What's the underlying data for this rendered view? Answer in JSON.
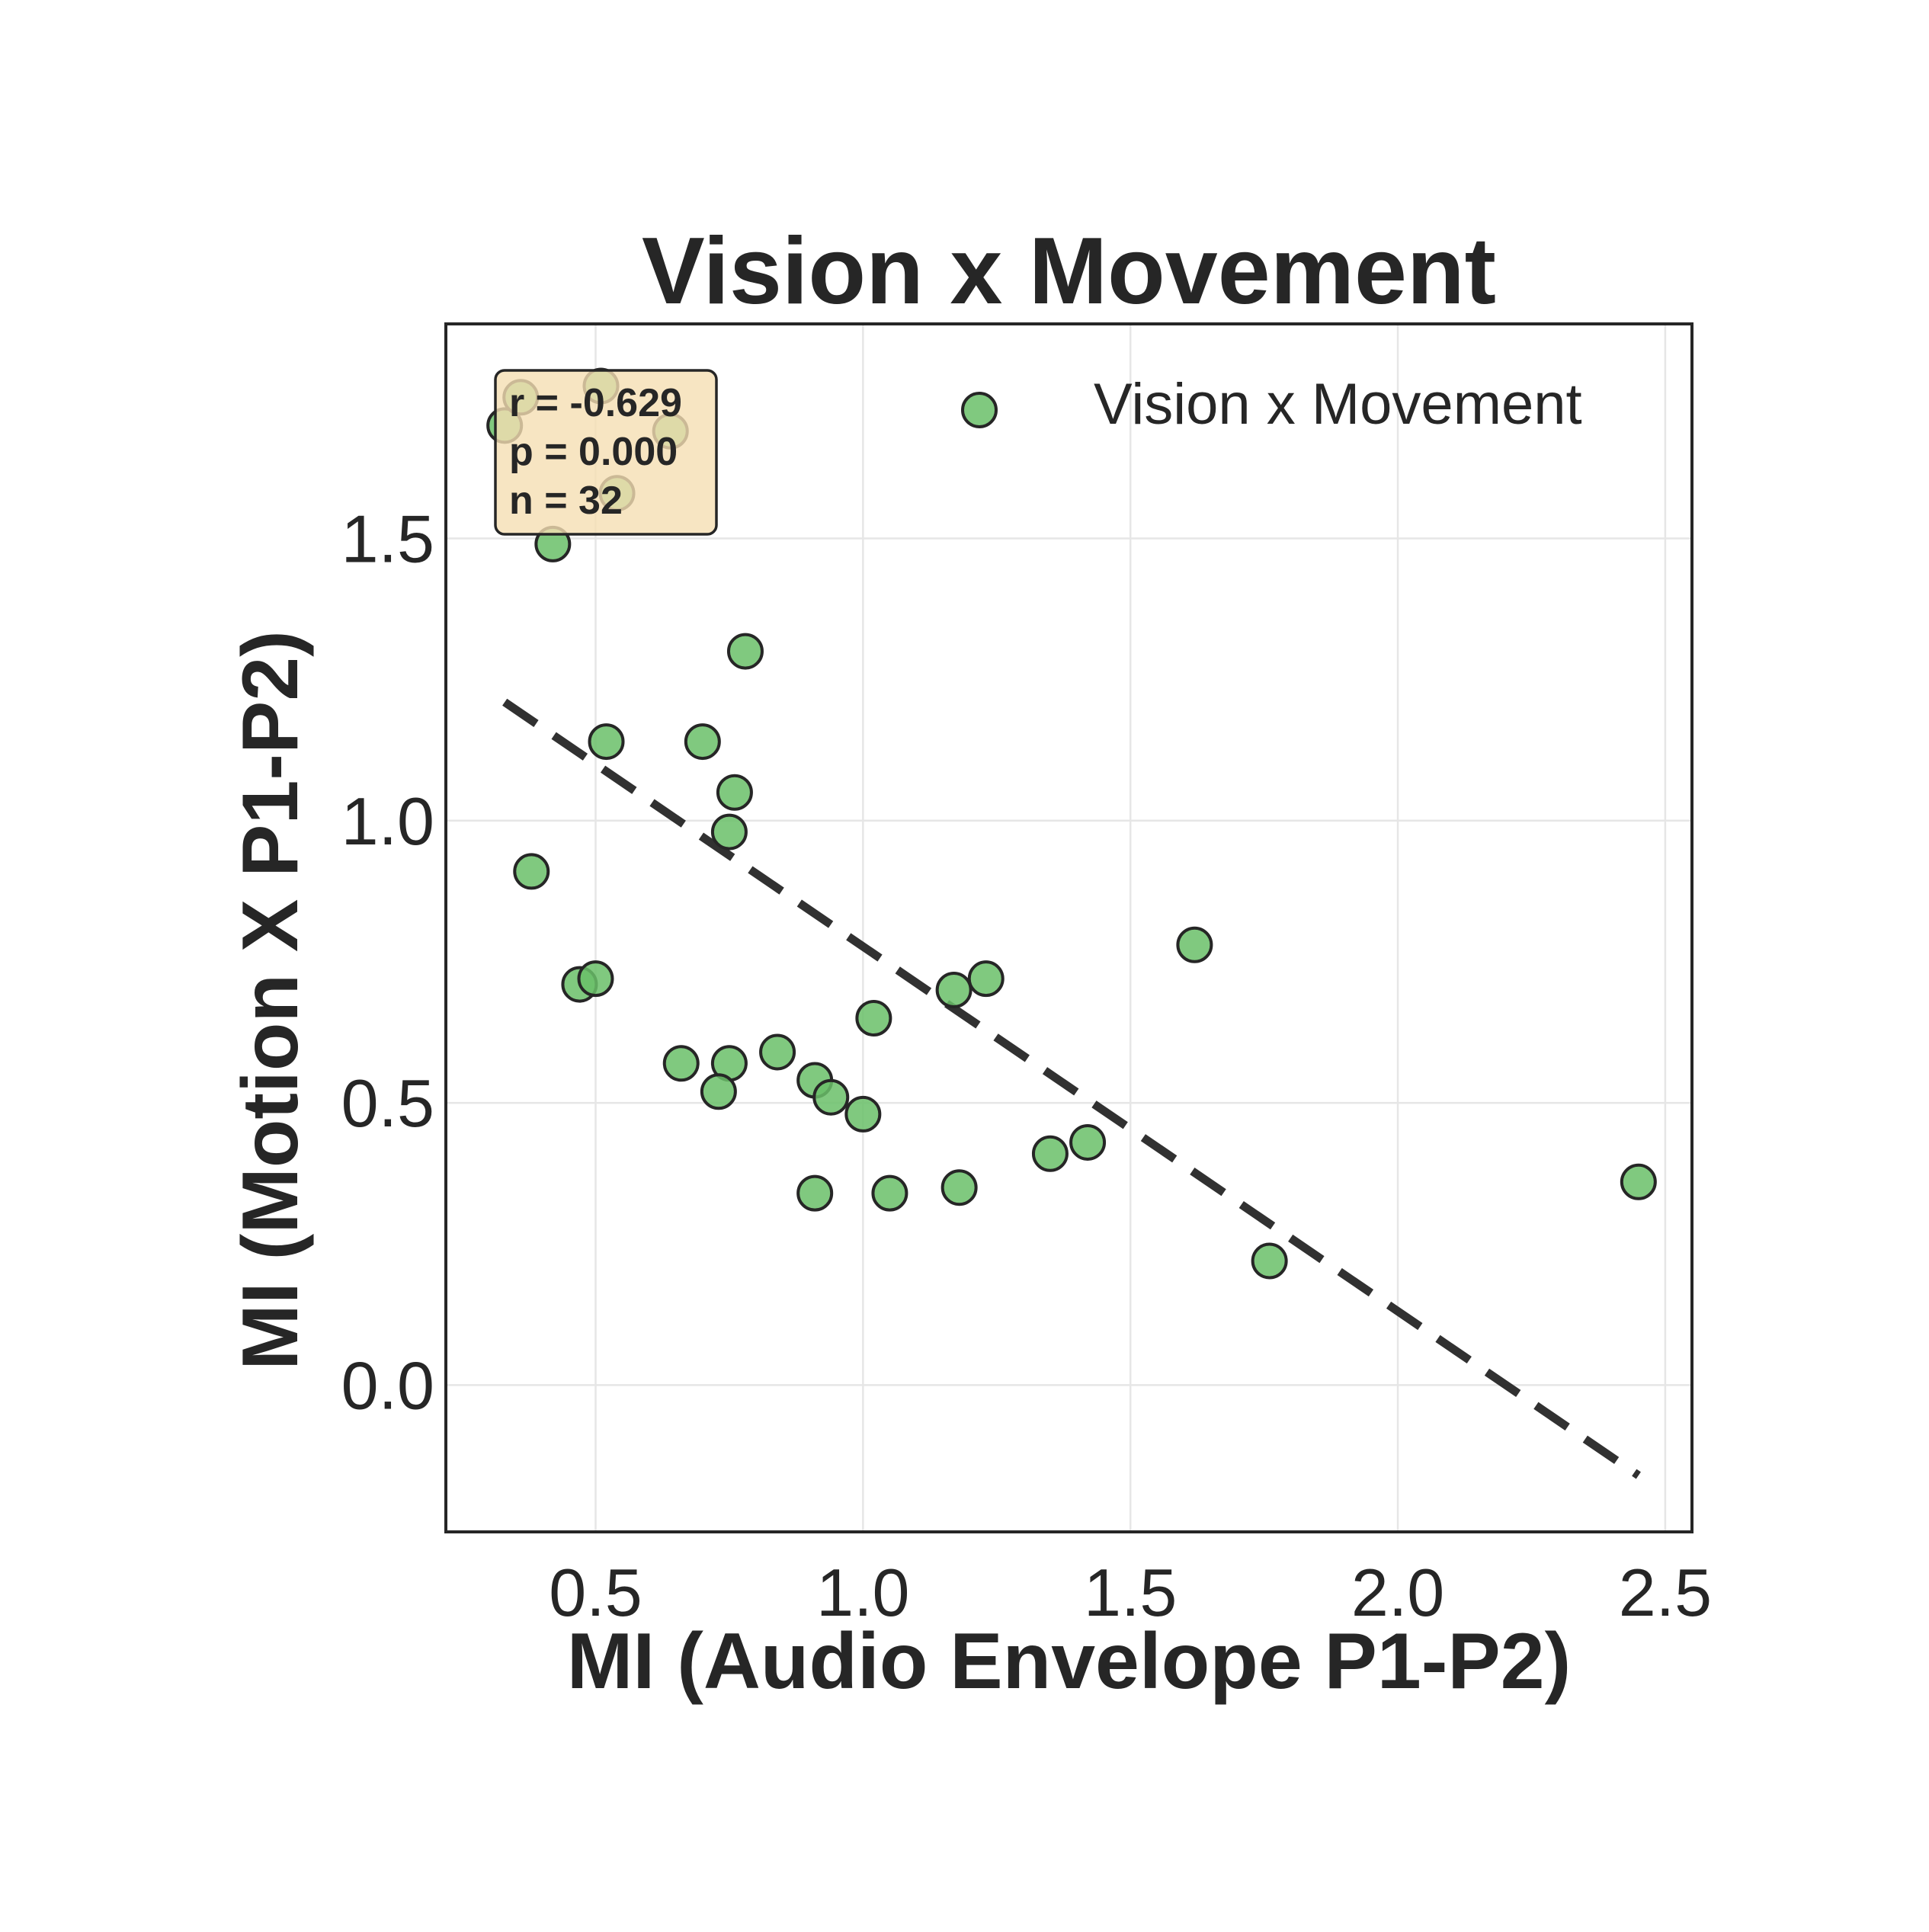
{
  "chart_data": {
    "type": "scatter",
    "title": "Vision x Movement",
    "xlabel": "MI (Audio Envelope P1-P2)",
    "ylabel": "MI (Motion X P1-P2)",
    "xlim": [
      0.22,
      2.55
    ],
    "ylim": [
      -0.26,
      1.88
    ],
    "xticks": [
      0.5,
      1.0,
      1.5,
      2.0,
      2.5
    ],
    "xtick_labels": [
      "0.5",
      "1.0",
      "1.5",
      "2.0",
      "2.5"
    ],
    "yticks": [
      0.0,
      0.5,
      1.0,
      1.5
    ],
    "ytick_labels": [
      "0.0",
      "0.5",
      "1.0",
      "1.5"
    ],
    "grid": true,
    "legend": {
      "position": "top-right",
      "entries": [
        "Vision x Movement"
      ]
    },
    "series": [
      {
        "name": "Vision x Movement",
        "color": "#6abf69",
        "points": [
          {
            "x": 0.33,
            "y": 1.7
          },
          {
            "x": 0.36,
            "y": 1.75
          },
          {
            "x": 0.51,
            "y": 1.77
          },
          {
            "x": 0.64,
            "y": 1.69
          },
          {
            "x": 0.54,
            "y": 1.58
          },
          {
            "x": 0.42,
            "y": 1.49
          },
          {
            "x": 0.78,
            "y": 1.3
          },
          {
            "x": 0.52,
            "y": 1.14
          },
          {
            "x": 0.7,
            "y": 1.14
          },
          {
            "x": 0.76,
            "y": 1.05
          },
          {
            "x": 0.75,
            "y": 0.98
          },
          {
            "x": 0.38,
            "y": 0.91
          },
          {
            "x": 0.47,
            "y": 0.71
          },
          {
            "x": 0.5,
            "y": 0.72
          },
          {
            "x": 0.66,
            "y": 0.57
          },
          {
            "x": 0.75,
            "y": 0.57
          },
          {
            "x": 0.73,
            "y": 0.52
          },
          {
            "x": 0.84,
            "y": 0.59
          },
          {
            "x": 0.91,
            "y": 0.54
          },
          {
            "x": 0.94,
            "y": 0.51
          },
          {
            "x": 1.0,
            "y": 0.48
          },
          {
            "x": 1.02,
            "y": 0.65
          },
          {
            "x": 1.17,
            "y": 0.7
          },
          {
            "x": 1.23,
            "y": 0.72
          },
          {
            "x": 0.91,
            "y": 0.34
          },
          {
            "x": 1.05,
            "y": 0.34
          },
          {
            "x": 1.18,
            "y": 0.35
          },
          {
            "x": 1.35,
            "y": 0.41
          },
          {
            "x": 1.42,
            "y": 0.43
          },
          {
            "x": 1.62,
            "y": 0.78
          },
          {
            "x": 1.76,
            "y": 0.22
          },
          {
            "x": 2.45,
            "y": 0.36
          }
        ]
      }
    ],
    "fit_line": {
      "x": [
        0.33,
        2.45
      ],
      "y": [
        1.21,
        -0.16
      ],
      "style": "dashed",
      "color": "#262626"
    },
    "annotation": {
      "position": "top-left",
      "lines": [
        "r = -0.629",
        "p = 0.000",
        "n = 32"
      ]
    }
  }
}
